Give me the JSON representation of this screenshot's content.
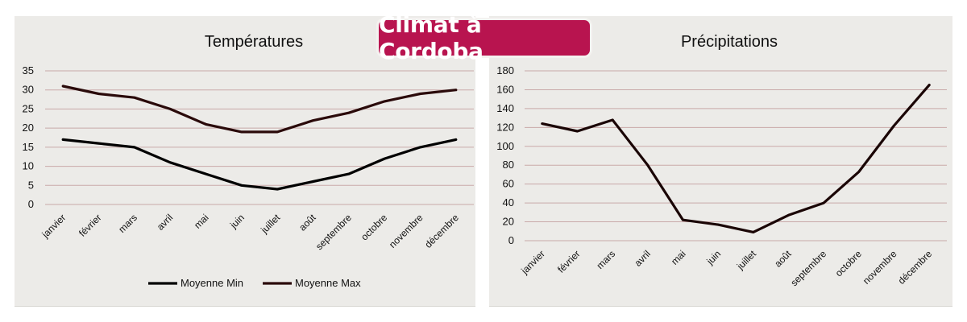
{
  "badge": {
    "title": "Climat à Cordoba",
    "color": "#b8144f"
  },
  "chart_data": [
    {
      "type": "line",
      "title": "Températures",
      "xlabel": "",
      "ylabel": "",
      "ylim": [
        0,
        35
      ],
      "yticks": [
        0,
        5,
        10,
        15,
        20,
        25,
        30,
        35
      ],
      "grid": true,
      "legend_placement": "bottom",
      "categories": [
        "janvier",
        "février",
        "mars",
        "avril",
        "mai",
        "juin",
        "juillet",
        "août",
        "septembre",
        "octobre",
        "novembre",
        "décembre"
      ],
      "series": [
        {
          "name": "Moyenne Min",
          "color": "#000000",
          "values": [
            17,
            16,
            15,
            11,
            8,
            5,
            4,
            6,
            8,
            12,
            15,
            17
          ]
        },
        {
          "name": "Moyenne Max",
          "color": "#2a0a0a",
          "values": [
            31,
            29,
            28,
            25,
            21,
            19,
            19,
            22,
            24,
            27,
            29,
            30
          ]
        }
      ]
    },
    {
      "type": "line",
      "title": "Précipitations",
      "xlabel": "",
      "ylabel": "",
      "ylim": [
        0,
        180
      ],
      "yticks": [
        0,
        20,
        40,
        60,
        80,
        100,
        120,
        140,
        160,
        180
      ],
      "grid": true,
      "categories": [
        "janvier",
        "février",
        "mars",
        "avril",
        "mai",
        "juin",
        "juillet",
        "août",
        "septembre",
        "octobre",
        "novembre",
        "décembre"
      ],
      "series": [
        {
          "color": "#1a0505",
          "values": [
            124,
            116,
            128,
            80,
            22,
            17,
            9,
            27,
            40,
            73,
            122,
            165
          ]
        }
      ]
    }
  ]
}
